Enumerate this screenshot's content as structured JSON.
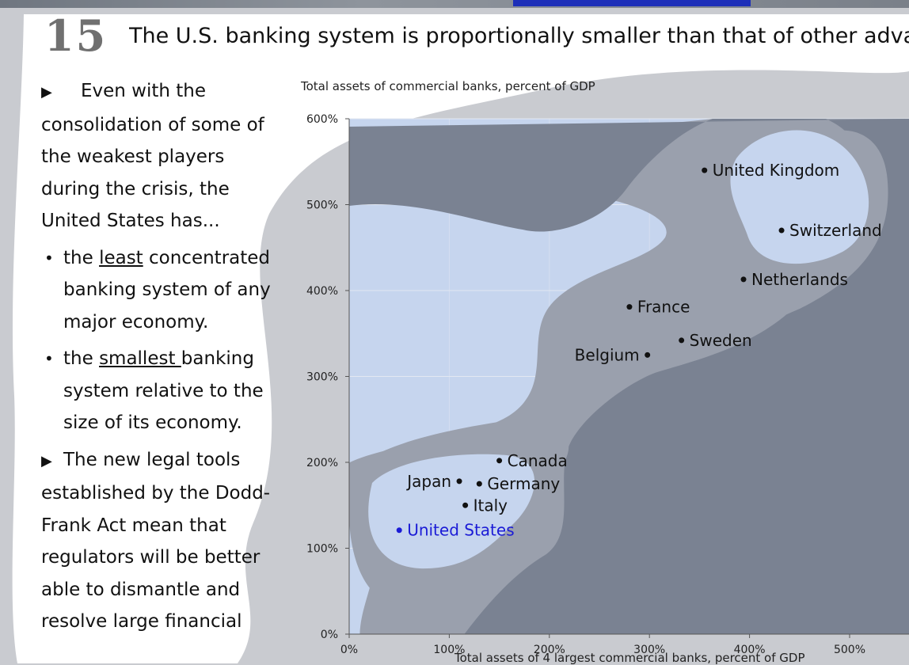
{
  "slide": {
    "number": "15",
    "title": "The U.S. banking system is proportionally smaller than that of other advanced eco"
  },
  "bullets": {
    "intro": "Even with the consolidation of some of the weakest players during the crisis, the United States has...",
    "item1_pre": "the ",
    "item1_emph": "least",
    "item1_post": " concentrated banking system of any major economy.",
    "item2_pre": "the ",
    "item2_emph": "smallest ",
    "item2_post": "banking system relative to the size of its economy.",
    "second": "The new legal tools established by the Dodd-Frank Act mean that regulators will be better able to dismantle and resolve large financial",
    "marker": "▶",
    "dot": "•"
  },
  "colors": {
    "plot_bg": "#c6d5ee",
    "blob_dark": "#7a8292",
    "blob_mid": "#9aa0ad",
    "us_blue": "#1b1bd6",
    "point": "#111111"
  },
  "chart_data": {
    "type": "scatter",
    "title": "Total assets of commercial banks, percent of GDP",
    "xlabel": "Total assets of 4 largest commercial banks, percent of GDP",
    "ylabel": "Total assets of commercial banks, percent of GDP",
    "xlim": [
      0,
      550
    ],
    "ylim": [
      0,
      600
    ],
    "x_ticks": [
      "0%",
      "100%",
      "200%",
      "300%",
      "400%",
      "500%"
    ],
    "y_ticks": [
      "0%",
      "100%",
      "200%",
      "300%",
      "400%",
      "500%",
      "600%"
    ],
    "grid": true,
    "points": [
      {
        "label": "United Kingdom",
        "x": 355,
        "y": 540,
        "label_side": "right"
      },
      {
        "label": "Switzerland",
        "x": 432,
        "y": 470,
        "label_side": "right"
      },
      {
        "label": "Netherlands",
        "x": 394,
        "y": 413,
        "label_side": "right"
      },
      {
        "label": "France",
        "x": 280,
        "y": 381,
        "label_side": "right"
      },
      {
        "label": "Sweden",
        "x": 332,
        "y": 342,
        "label_side": "right"
      },
      {
        "label": "Belgium",
        "x": 298,
        "y": 325,
        "label_side": "left"
      },
      {
        "label": "Canada",
        "x": 150,
        "y": 202,
        "label_side": "right"
      },
      {
        "label": "Japan",
        "x": 110,
        "y": 178,
        "label_side": "left"
      },
      {
        "label": "Germany",
        "x": 130,
        "y": 175,
        "label_side": "right"
      },
      {
        "label": "Italy",
        "x": 116,
        "y": 150,
        "label_side": "right"
      },
      {
        "label": "United States",
        "x": 50,
        "y": 121,
        "label_side": "right",
        "highlight": true
      }
    ]
  }
}
